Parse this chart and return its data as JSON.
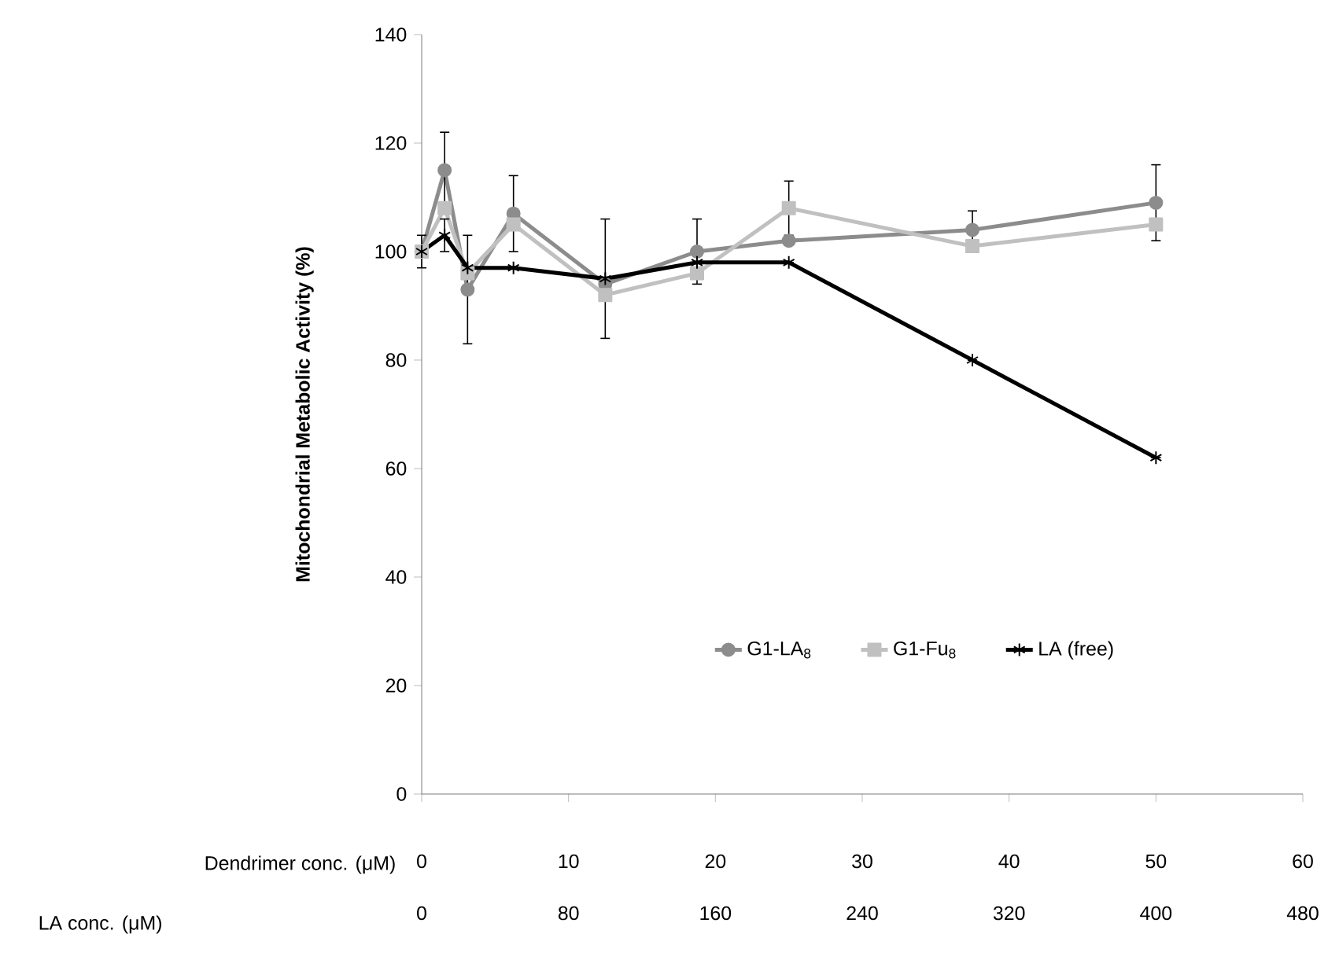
{
  "chart_data": {
    "type": "line",
    "xlabel": "Dendrimer conc. (μM)",
    "x2label": "LA conc. (μM)",
    "ylabel": "Mitochondrial Metabolic Activity (%)",
    "x": [
      0,
      1.5625,
      3.125,
      6.25,
      12.5,
      18.75,
      25,
      37.5,
      50
    ],
    "series": [
      {
        "name": "G1-LA$_{8}$",
        "color": "#8c8c8c",
        "marker": "circle",
        "values": [
          100,
          115,
          93,
          107,
          94,
          100,
          102,
          104,
          109
        ],
        "errors": [
          null,
          7,
          10,
          7,
          null,
          6,
          null,
          3.5,
          7
        ]
      },
      {
        "name": "G1-Fu$_{8}$",
        "color": "#c0c0c0",
        "marker": "square",
        "values": [
          100,
          108,
          96,
          105,
          92,
          96,
          108,
          101,
          105
        ],
        "errors": [
          null,
          null,
          null,
          null,
          null,
          null,
          5,
          null,
          null
        ]
      },
      {
        "name": "LA (free)",
        "color": "#000000",
        "marker": "cross",
        "values": [
          100,
          103,
          97,
          97,
          95,
          98,
          98,
          80,
          62
        ],
        "errors": [
          3,
          3,
          null,
          null,
          11,
          null,
          null,
          null,
          null
        ]
      }
    ],
    "xlim": [
      0,
      60
    ],
    "xticks": [
      0,
      10,
      20,
      30,
      40,
      50,
      60
    ],
    "x2lim": [
      0,
      480
    ],
    "x2ticks": [
      0,
      80,
      160,
      240,
      320,
      400,
      480
    ],
    "ylim": [
      0,
      140
    ],
    "yticks": [
      0,
      20,
      40,
      60,
      80,
      100,
      120,
      140
    ],
    "grid": false,
    "legend": "bottom",
    "line_style": "solid"
  }
}
